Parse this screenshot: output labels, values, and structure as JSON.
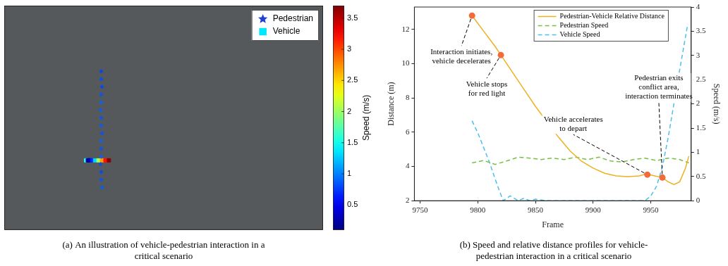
{
  "chart_data": [
    {
      "type": "scatter",
      "title": [
        "(a) An illustration of vehicle-pedestrian interaction in a",
        "critical scenario"
      ],
      "xlim": [
        0,
        460
      ],
      "ylim": [
        0,
        290
      ],
      "tick_labels": false,
      "grid": false,
      "legend": "upper right",
      "series": [
        {
          "name": "Pedestrian",
          "color": "#1f3fd0",
          "marker": "star",
          "x": [
            140,
            140,
            141,
            140,
            140,
            139,
            140,
            140,
            141,
            140,
            140,
            140,
            139,
            140,
            140,
            141
          ],
          "values": [
            205,
            195,
            185,
            175,
            165,
            155,
            145,
            135,
            125,
            115,
            105,
            95,
            85,
            75,
            65,
            55
          ],
          "speed": [
            0.78,
            0.83,
            0.8,
            0.85,
            0.9,
            0.88,
            0.85,
            0.88,
            0.85,
            0.9,
            0.85,
            0.9,
            0.82,
            0.8,
            0.85,
            0.88
          ]
        },
        {
          "name": "Vehicle",
          "color": "#00e8ff",
          "marker": "square",
          "x": [
            118,
            120,
            121,
            122,
            122,
            124,
            127,
            131,
            136,
            141,
            146,
            151
          ],
          "values": [
            90,
            90,
            90,
            90,
            90,
            90,
            90,
            90,
            90,
            90,
            90,
            90
          ],
          "speed": [
            1.6,
            1.1,
            0.5,
            0.1,
            0.1,
            0.3,
            0.7,
            1.3,
            2.0,
            2.7,
            3.2,
            3.65
          ]
        }
      ],
      "colorbar": {
        "label": "Speed (m/s)",
        "range": [
          0.1,
          3.7
        ],
        "ticks": [
          0.5,
          1,
          1.5,
          2,
          2.5,
          3,
          3.5
        ]
      }
    },
    {
      "type": "line",
      "title": [
        "(b) Speed and relative distance profiles for vehicle-",
        "pedestrian interaction in a critical scenario"
      ],
      "xlabel": "Frame",
      "ylabel": "Distance (m)",
      "y2label": "Speed (m/s)",
      "xlim": [
        9745,
        9985
      ],
      "xticks": [
        9750,
        9800,
        9850,
        9900,
        9950
      ],
      "ylim": [
        2,
        13.3
      ],
      "yticks": [
        2,
        4,
        6,
        8,
        10,
        12
      ],
      "y2lim": [
        0,
        4
      ],
      "y2ticks": [
        0,
        0.5,
        1,
        1.5,
        2,
        2.5,
        3,
        3.5,
        4
      ],
      "grid": false,
      "legend": "upper right",
      "series": [
        {
          "name": "Pedestrian-Vehicle Relative Distance",
          "color": "#edb120",
          "line_style": "solid",
          "x": [
            9795,
            9805,
            9815,
            9820,
            9830,
            9840,
            9850,
            9860,
            9870,
            9880,
            9890,
            9900,
            9910,
            9920,
            9930,
            9940,
            9945,
            9950,
            9960,
            9965,
            9970,
            9975,
            9980,
            9983
          ],
          "values": [
            12.8,
            11.9,
            11.0,
            10.5,
            9.5,
            8.5,
            7.5,
            6.6,
            5.7,
            4.9,
            4.3,
            3.9,
            3.6,
            3.45,
            3.4,
            3.45,
            3.55,
            3.5,
            3.35,
            3.1,
            2.95,
            3.1,
            3.9,
            4.6
          ]
        },
        {
          "name": "Pedestrian Speed",
          "color": "#77c043",
          "line_style": "dashed",
          "axis": "y2",
          "x": [
            9795,
            9805,
            9815,
            9825,
            9835,
            9845,
            9855,
            9865,
            9875,
            9885,
            9895,
            9905,
            9915,
            9925,
            9935,
            9945,
            9955,
            9965,
            9975,
            9983
          ],
          "values": [
            0.78,
            0.83,
            0.75,
            0.82,
            0.9,
            0.88,
            0.85,
            0.88,
            0.85,
            0.9,
            0.85,
            0.9,
            0.82,
            0.8,
            0.85,
            0.88,
            0.83,
            0.88,
            0.85,
            0.78
          ]
        },
        {
          "name": "Vehicle Speed",
          "color": "#4dbeee",
          "line_style": "dashed",
          "axis": "y2",
          "x": [
            9795,
            9800,
            9805,
            9810,
            9815,
            9818,
            9822,
            9828,
            9835,
            9840,
            9845,
            9850,
            9860,
            9870,
            9880,
            9890,
            9900,
            9910,
            9920,
            9930,
            9940,
            9945,
            9950,
            9955,
            9960,
            9965,
            9970,
            9975,
            9982
          ],
          "values": [
            1.65,
            1.4,
            1.1,
            0.8,
            0.45,
            0.25,
            0.0,
            0.1,
            0.0,
            0.05,
            0.0,
            0.03,
            0,
            0,
            0,
            0,
            0,
            0,
            0,
            0,
            0,
            0,
            0.1,
            0.3,
            0.7,
            1.3,
            2.0,
            2.7,
            3.65
          ]
        },
        {
          "type": "scatter",
          "color": "#f26b3a",
          "marker": "circle",
          "x": [
            9795,
            9820,
            9947,
            9960
          ],
          "values": [
            12.8,
            10.5,
            3.52,
            3.35
          ]
        }
      ],
      "annotations": [
        {
          "lines": [
            "Interaction initiates,",
            "vehicle decelerates"
          ],
          "x": 9795,
          "y": 12.8
        },
        {
          "lines": [
            "Vehicle stops",
            "for red light"
          ],
          "x": 9820,
          "y": 10.5
        },
        {
          "lines": [
            "Vehicle accelerates",
            "to depart"
          ],
          "x": 9947,
          "y": 3.52
        },
        {
          "lines": [
            "Pedestrian exits",
            "conflict area,",
            "interaction terminates"
          ],
          "x": 9960,
          "y": 3.35
        }
      ]
    }
  ]
}
